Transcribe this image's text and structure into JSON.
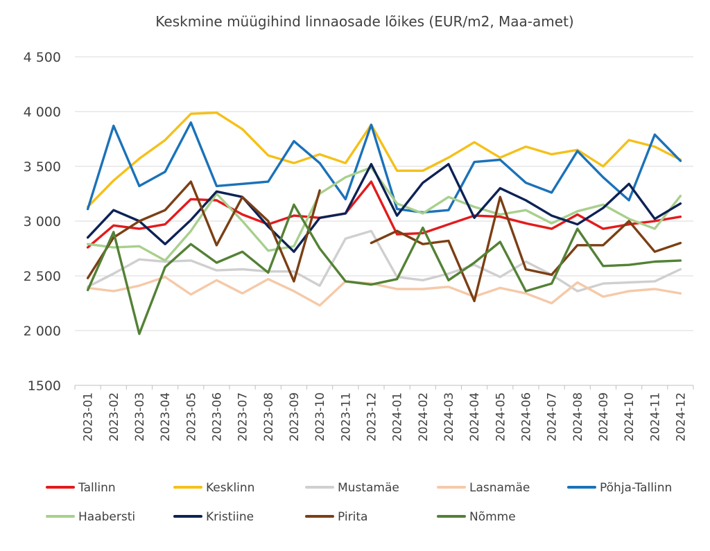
{
  "chart_data": {
    "type": "line",
    "title": "Keskmine müügihind linnaosade lõikes (EUR/m2, Maa-amet)",
    "xlabel": "",
    "ylabel": "",
    "ylim": [
      1500,
      4500
    ],
    "yticks": [
      1500,
      2000,
      2500,
      3000,
      3500,
      4000,
      4500
    ],
    "ytick_labels": [
      "1500",
      "2 000",
      "2 500",
      "3 000",
      "3 500",
      "4 000",
      "4 500"
    ],
    "grid": true,
    "legend_position": "bottom",
    "categories": [
      "2023-01",
      "2023-02",
      "2023-03",
      "2023-04",
      "2023-05",
      "2023-06",
      "2023-07",
      "2023-08",
      "2023-09",
      "2023-10",
      "2023-11",
      "2023-12",
      "2024-01",
      "2024-02",
      "2024-03",
      "2024-04",
      "2024-05",
      "2024-06",
      "2024-07",
      "2024-08",
      "2024-09",
      "2024-10",
      "2024-11",
      "2024-12"
    ],
    "series": [
      {
        "name": "Tallinn",
        "color": "#e31a1c",
        "values": [
          2760,
          2960,
          2930,
          2970,
          3200,
          3190,
          3060,
          2970,
          3050,
          3030,
          3070,
          3360,
          2880,
          2890,
          2970,
          3050,
          3040,
          2980,
          2930,
          3060,
          2930,
          2970,
          3000,
          3040
        ]
      },
      {
        "name": "Kesklinn",
        "color": "#f5c018",
        "values": [
          3130,
          3370,
          3570,
          3740,
          3980,
          3990,
          3840,
          3600,
          3530,
          3610,
          3530,
          3880,
          3460,
          3460,
          3580,
          3720,
          3580,
          3680,
          3610,
          3650,
          3500,
          3740,
          3680,
          3560
        ]
      },
      {
        "name": "Mustamäe",
        "color": "#cfcfcf",
        "values": [
          2400,
          2520,
          2650,
          2630,
          2640,
          2550,
          2560,
          2540,
          2540,
          2410,
          2840,
          2910,
          2490,
          2460,
          2520,
          2600,
          2490,
          2630,
          2510,
          2360,
          2430,
          2440,
          2450,
          2560
        ]
      },
      {
        "name": "Lasnamäe",
        "color": "#f5c9a8",
        "values": [
          2390,
          2360,
          2410,
          2490,
          2330,
          2460,
          2340,
          2470,
          2360,
          2230,
          2450,
          2430,
          2380,
          2380,
          2400,
          2310,
          2390,
          2340,
          2250,
          2440,
          2310,
          2360,
          2380,
          2340
        ]
      },
      {
        "name": "Põhja-Tallinn",
        "color": "#1a72b9",
        "values": [
          3110,
          3870,
          3320,
          3450,
          3900,
          3320,
          3340,
          3360,
          3730,
          3530,
          3200,
          3880,
          3110,
          3080,
          3100,
          3540,
          3560,
          3350,
          3260,
          3640,
          3400,
          3190,
          3790,
          3550
        ]
      },
      {
        "name": "Haabersti",
        "color": "#a8d08d",
        "values": [
          2790,
          2760,
          2770,
          2640,
          2910,
          3250,
          3000,
          2730,
          2770,
          3250,
          3400,
          3490,
          3160,
          3070,
          3220,
          3130,
          3060,
          3100,
          2980,
          3090,
          3150,
          3020,
          2930,
          3230
        ]
      },
      {
        "name": "Kristiine",
        "color": "#0d2255",
        "values": [
          2850,
          3100,
          3000,
          2790,
          3010,
          3270,
          3220,
          2950,
          2720,
          3030,
          3070,
          3520,
          3050,
          3350,
          3520,
          3030,
          3300,
          3190,
          3050,
          2970,
          3120,
          3340,
          3020,
          3160
        ]
      },
      {
        "name": "Pirita",
        "color": "#7b3f14",
        "values": [
          2480,
          2850,
          3000,
          3100,
          3360,
          2780,
          3220,
          3000,
          2450,
          3280,
          null,
          2800,
          2910,
          2790,
          2820,
          2270,
          3220,
          2560,
          2510,
          2780,
          2780,
          3000,
          2720,
          2800
        ]
      },
      {
        "name": "Nõmme",
        "color": "#538135",
        "values": [
          2370,
          2900,
          1970,
          2580,
          2790,
          2620,
          2720,
          2530,
          3150,
          2750,
          2450,
          2420,
          2470,
          2940,
          2460,
          2620,
          2810,
          2360,
          2430,
          2930,
          2590,
          2600,
          2630,
          2640
        ]
      }
    ]
  }
}
